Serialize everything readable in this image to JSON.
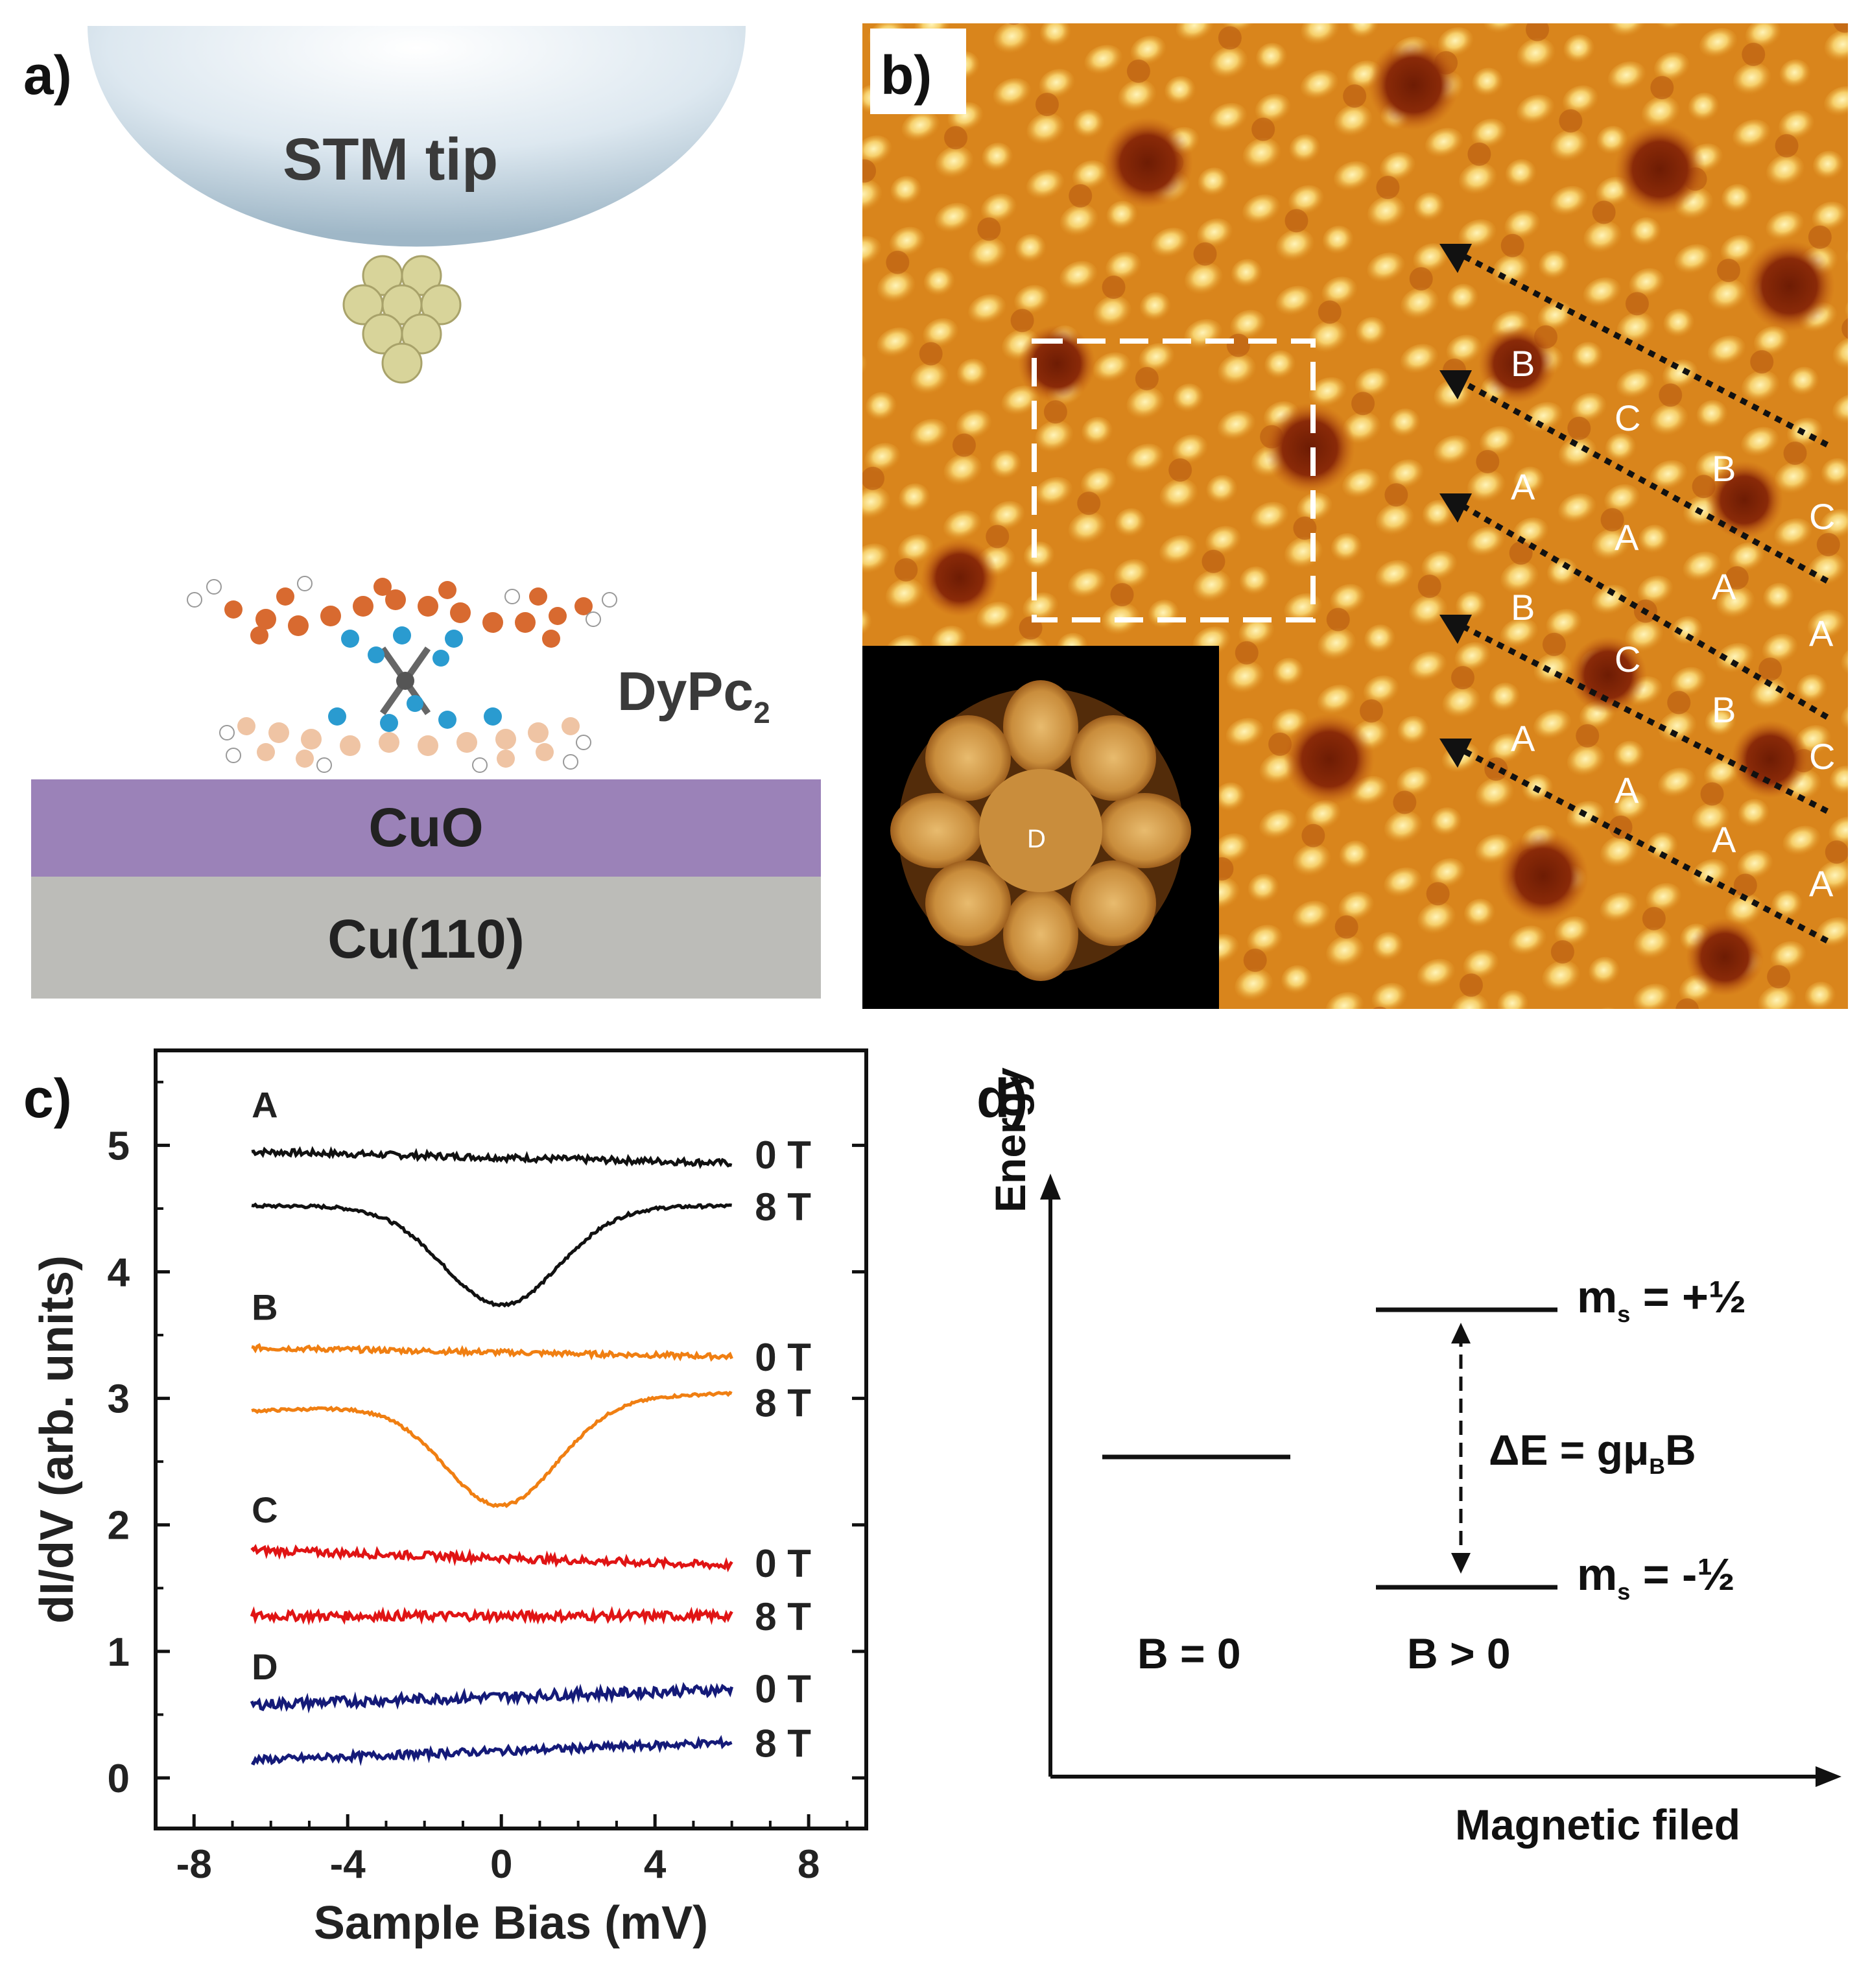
{
  "panels": {
    "a": {
      "label": "a)",
      "tip_label": "STM tip",
      "molecule_label": "DyPc",
      "molecule_subscript": "2",
      "layer_top": "CuO",
      "layer_bottom": "Cu(110)",
      "colors": {
        "cuo": "#9b82b8",
        "cu110": "#bcbcb8",
        "tip": "#c7d9e6",
        "tip_atoms": "#d8d49a"
      }
    },
    "b": {
      "label": "b)",
      "inset_center_label": "D",
      "row_labels": [
        [
          "B",
          "C",
          "B",
          "C"
        ],
        [
          "A",
          "A",
          "A",
          "A"
        ],
        [
          "B",
          "C",
          "B",
          "C"
        ],
        [
          "A",
          "A",
          "A",
          "A"
        ]
      ],
      "colors": {
        "bright": "#fff2b0",
        "mid": "#e0901e",
        "dark": "#8a2a08"
      }
    },
    "c": {
      "label": "c)"
    },
    "d": {
      "label": "d)",
      "y_axis_label": "Energy",
      "x_axis_label": "Magnetic filed",
      "upper_level_label": "m",
      "upper_level_sub": "s",
      "upper_level_value": " = +½",
      "lower_level_label": "m",
      "lower_level_sub": "s",
      "lower_level_value": " = -½",
      "splitting_label_pre": "ΔE = gμ",
      "splitting_label_sub": "B",
      "splitting_label_post": "B",
      "b_zero_label": "B = 0",
      "b_positive_label": "B > 0"
    }
  },
  "chart_data": {
    "type": "line",
    "title": "",
    "xlabel": "Sample Bias  (mV)",
    "ylabel": "dI/dV (arb. units)",
    "xlim": [
      -9,
      9.5
    ],
    "ylim": [
      -0.4,
      5.75
    ],
    "xticks": [
      -8,
      -4,
      0,
      4,
      8
    ],
    "yticks": [
      0,
      1,
      2,
      3,
      4,
      5
    ],
    "series": [
      {
        "name": "A 0 T",
        "group": "A",
        "field": "0 T",
        "color": "#111111",
        "baseline_start": 4.95,
        "baseline_end": 4.86,
        "dip_depth": 0,
        "dip_width": 0,
        "noise": 0.025
      },
      {
        "name": "A 8 T",
        "group": "A",
        "field": "8 T",
        "color": "#111111",
        "baseline_start": 4.52,
        "baseline_end": 4.52,
        "dip_depth": 0.78,
        "dip_width": 1.5,
        "noise": 0.012
      },
      {
        "name": "B 0 T",
        "group": "B",
        "field": "0 T",
        "color": "#f07f12",
        "baseline_start": 3.4,
        "baseline_end": 3.33,
        "dip_depth": 0,
        "dip_width": 0,
        "noise": 0.02
      },
      {
        "name": "B 8 T",
        "group": "B",
        "field": "8 T",
        "color": "#f07f12",
        "baseline_start": 2.9,
        "baseline_end": 3.04,
        "dip_depth": 0.82,
        "dip_width": 1.45,
        "noise": 0.01
      },
      {
        "name": "C 0 T",
        "group": "C",
        "field": "0 T",
        "color": "#e01414",
        "baseline_start": 1.8,
        "baseline_end": 1.68,
        "dip_depth": 0,
        "dip_width": 0,
        "noise": 0.03
      },
      {
        "name": "C 8 T",
        "group": "C",
        "field": "8 T",
        "color": "#e01414",
        "baseline_start": 1.28,
        "baseline_end": 1.28,
        "dip_depth": 0,
        "dip_width": 0,
        "noise": 0.035
      },
      {
        "name": "D 0 T",
        "group": "D",
        "field": "0 T",
        "color": "#141a78",
        "baseline_start": 0.58,
        "baseline_end": 0.7,
        "dip_depth": 0,
        "dip_width": 0,
        "noise": 0.04
      },
      {
        "name": "D 8 T",
        "group": "D",
        "field": "8 T",
        "color": "#141a78",
        "baseline_start": 0.14,
        "baseline_end": 0.28,
        "dip_depth": 0,
        "dip_width": 0,
        "noise": 0.03
      }
    ],
    "group_labels": [
      {
        "text": "A",
        "y": 5.22
      },
      {
        "text": "B",
        "y": 3.62
      },
      {
        "text": "C",
        "y": 2.02
      },
      {
        "text": "D",
        "y": 0.78
      }
    ],
    "field_labels": [
      {
        "text": "0 T",
        "y": 4.93
      },
      {
        "text": "8 T",
        "y": 4.52
      },
      {
        "text": "0 T",
        "y": 3.33
      },
      {
        "text": "8 T",
        "y": 2.97
      },
      {
        "text": "0 T",
        "y": 1.7
      },
      {
        "text": "8 T",
        "y": 1.28
      },
      {
        "text": "0 T",
        "y": 0.71
      },
      {
        "text": "8 T",
        "y": 0.28
      }
    ]
  }
}
